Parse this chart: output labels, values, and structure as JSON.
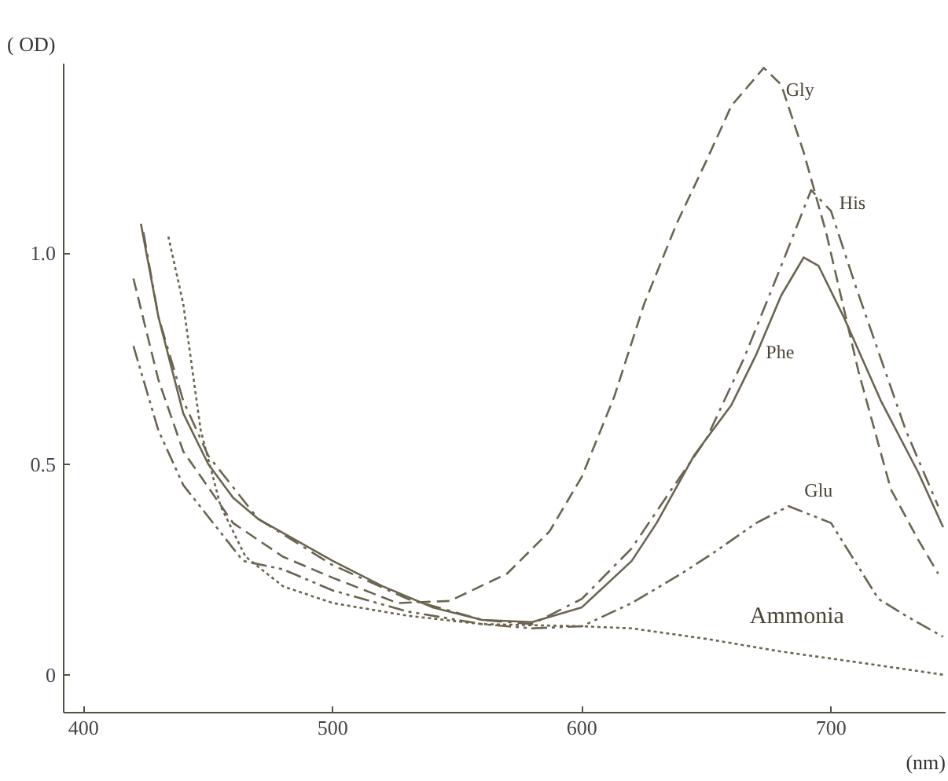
{
  "chart_data": {
    "type": "line",
    "xlabel": "(nm)",
    "ylabel": "( OD)",
    "xlim": [
      392,
      746
    ],
    "ylim": [
      -0.09,
      1.45
    ],
    "xticks": [
      400,
      500,
      600,
      700
    ],
    "yticks": [
      0,
      {
        "value": 0.5,
        "label": "0.5"
      },
      {
        "value": 1.0,
        "label": "1.0"
      }
    ],
    "grid": false,
    "legend": false,
    "marker": "none",
    "series": [
      {
        "name": "Gly",
        "color": "#6b6450",
        "line_style": "dashed",
        "x": [
          420,
          430,
          440,
          460,
          480,
          500,
          526,
          547,
          570,
          587,
          600,
          613,
          625,
          638,
          650,
          660,
          673,
          680,
          689,
          698,
          711,
          724,
          735,
          743
        ],
        "values": [
          0.94,
          0.7,
          0.53,
          0.36,
          0.28,
          0.23,
          0.17,
          0.175,
          0.24,
          0.34,
          0.47,
          0.66,
          0.88,
          1.07,
          1.22,
          1.35,
          1.44,
          1.4,
          1.24,
          1.05,
          0.72,
          0.44,
          0.32,
          0.24
        ]
      },
      {
        "name": "His",
        "color": "#6b6450",
        "line_style": "dashdot",
        "x": [
          424,
          430,
          440,
          450,
          470,
          500,
          530,
          560,
          580,
          600,
          620,
          636,
          650,
          665,
          680,
          692,
          700,
          710,
          720,
          730,
          743
        ],
        "values": [
          1.05,
          0.85,
          0.65,
          0.52,
          0.37,
          0.26,
          0.18,
          0.13,
          0.12,
          0.18,
          0.3,
          0.44,
          0.56,
          0.75,
          0.97,
          1.15,
          1.1,
          0.92,
          0.75,
          0.58,
          0.4
        ]
      },
      {
        "name": "Phe",
        "color": "#6b6450",
        "line_style": "solid",
        "x": [
          423,
          430,
          440,
          450,
          460,
          470,
          500,
          520,
          540,
          560,
          580,
          600,
          620,
          630,
          645,
          660,
          670,
          680,
          689,
          695,
          705,
          720,
          735,
          745
        ],
        "values": [
          1.07,
          0.85,
          0.62,
          0.5,
          0.42,
          0.37,
          0.27,
          0.21,
          0.16,
          0.13,
          0.125,
          0.16,
          0.27,
          0.36,
          0.52,
          0.64,
          0.76,
          0.9,
          0.99,
          0.97,
          0.85,
          0.65,
          0.48,
          0.35
        ]
      },
      {
        "name": "Glu",
        "color": "#6b6450",
        "line_style": "dashdotdot",
        "x": [
          420,
          430,
          440,
          464,
          480,
          500,
          530,
          560,
          580,
          600,
          620,
          640,
          653,
          670,
          683,
          700,
          719,
          730,
          745
        ],
        "values": [
          0.78,
          0.58,
          0.45,
          0.27,
          0.25,
          0.2,
          0.15,
          0.12,
          0.11,
          0.115,
          0.17,
          0.24,
          0.29,
          0.36,
          0.4,
          0.36,
          0.18,
          0.14,
          0.09
        ]
      },
      {
        "name": "Ammonia",
        "color": "#6b6450",
        "line_style": "dotted",
        "x": [
          434,
          440,
          447,
          455,
          465,
          480,
          500,
          530,
          560,
          600,
          620,
          650,
          680,
          710,
          745
        ],
        "values": [
          1.04,
          0.88,
          0.58,
          0.4,
          0.28,
          0.21,
          0.17,
          0.14,
          0.12,
          0.115,
          0.11,
          0.085,
          0.055,
          0.03,
          0.0
        ]
      }
    ]
  }
}
